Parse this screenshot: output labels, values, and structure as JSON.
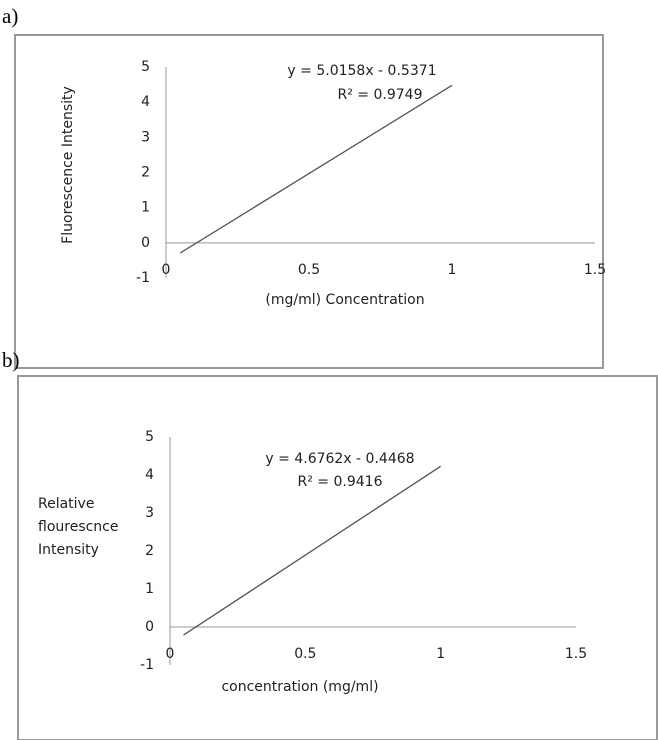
{
  "chart_data": [
    {
      "type": "line",
      "panel": "a)",
      "x_label": "(mg/ml) Concentration",
      "y_label": [
        "Fluorescence Intensity"
      ],
      "annotations": [
        "y = 5.0158x - 0.5371",
        "R² = 0.9749"
      ],
      "x": [
        0.05,
        1
      ],
      "values": [
        -0.2863,
        4.4787
      ],
      "color": "#555555",
      "xlim": [
        0,
        1.5
      ],
      "xticks": [
        0,
        0.5,
        1,
        1.5
      ],
      "ylim": [
        -1,
        5
      ],
      "yticks": [
        -1,
        0,
        1,
        2,
        3,
        4,
        5
      ]
    },
    {
      "type": "line",
      "panel": "b)",
      "x_label": "concentration (mg/ml)",
      "y_label": [
        "Relative",
        "flourescnce",
        "Intensity"
      ],
      "annotations": [
        "y = 4.6762x - 0.4468",
        "R² = 0.9416"
      ],
      "x": [
        0.05,
        1
      ],
      "values": [
        -0.213,
        4.2294
      ],
      "color": "#555555",
      "xlim": [
        0,
        1.5
      ],
      "xticks": [
        0,
        0.5,
        1,
        1.5
      ],
      "ylim": [
        -1,
        5
      ],
      "yticks": [
        -1,
        0,
        1,
        2,
        3,
        4,
        5
      ]
    }
  ]
}
